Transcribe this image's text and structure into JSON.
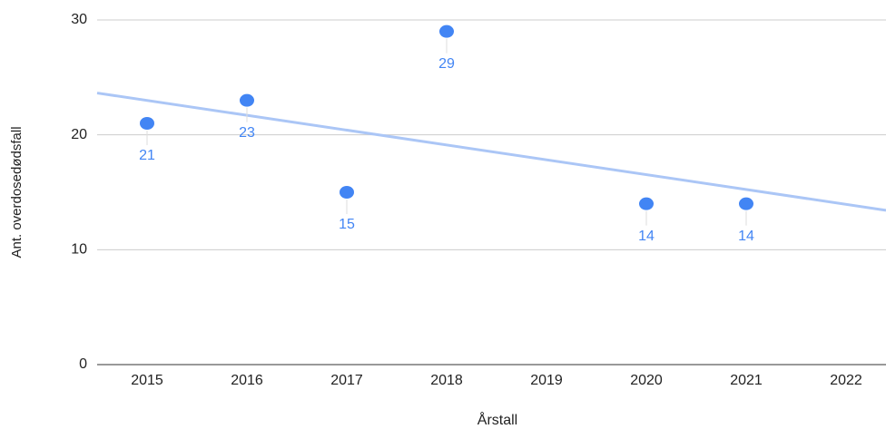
{
  "chart_data": {
    "type": "scatter",
    "x_label": "Årstall",
    "y_label": "Ant. overdosedødsfall",
    "x": [
      2015,
      2016,
      2017,
      2018,
      2020,
      2021
    ],
    "values": [
      21,
      23,
      15,
      29,
      14,
      14
    ],
    "color": "#4285f4",
    "trendline": true,
    "trendline_color": "#abc6f6",
    "xlim": [
      2014.5,
      2022.4
    ],
    "xticks": [
      2015,
      2016,
      2017,
      2018,
      2019,
      2020,
      2021,
      2022
    ],
    "ylim": [
      0,
      30
    ],
    "yticks": [
      0,
      10,
      20,
      30
    ],
    "grid": true
  }
}
